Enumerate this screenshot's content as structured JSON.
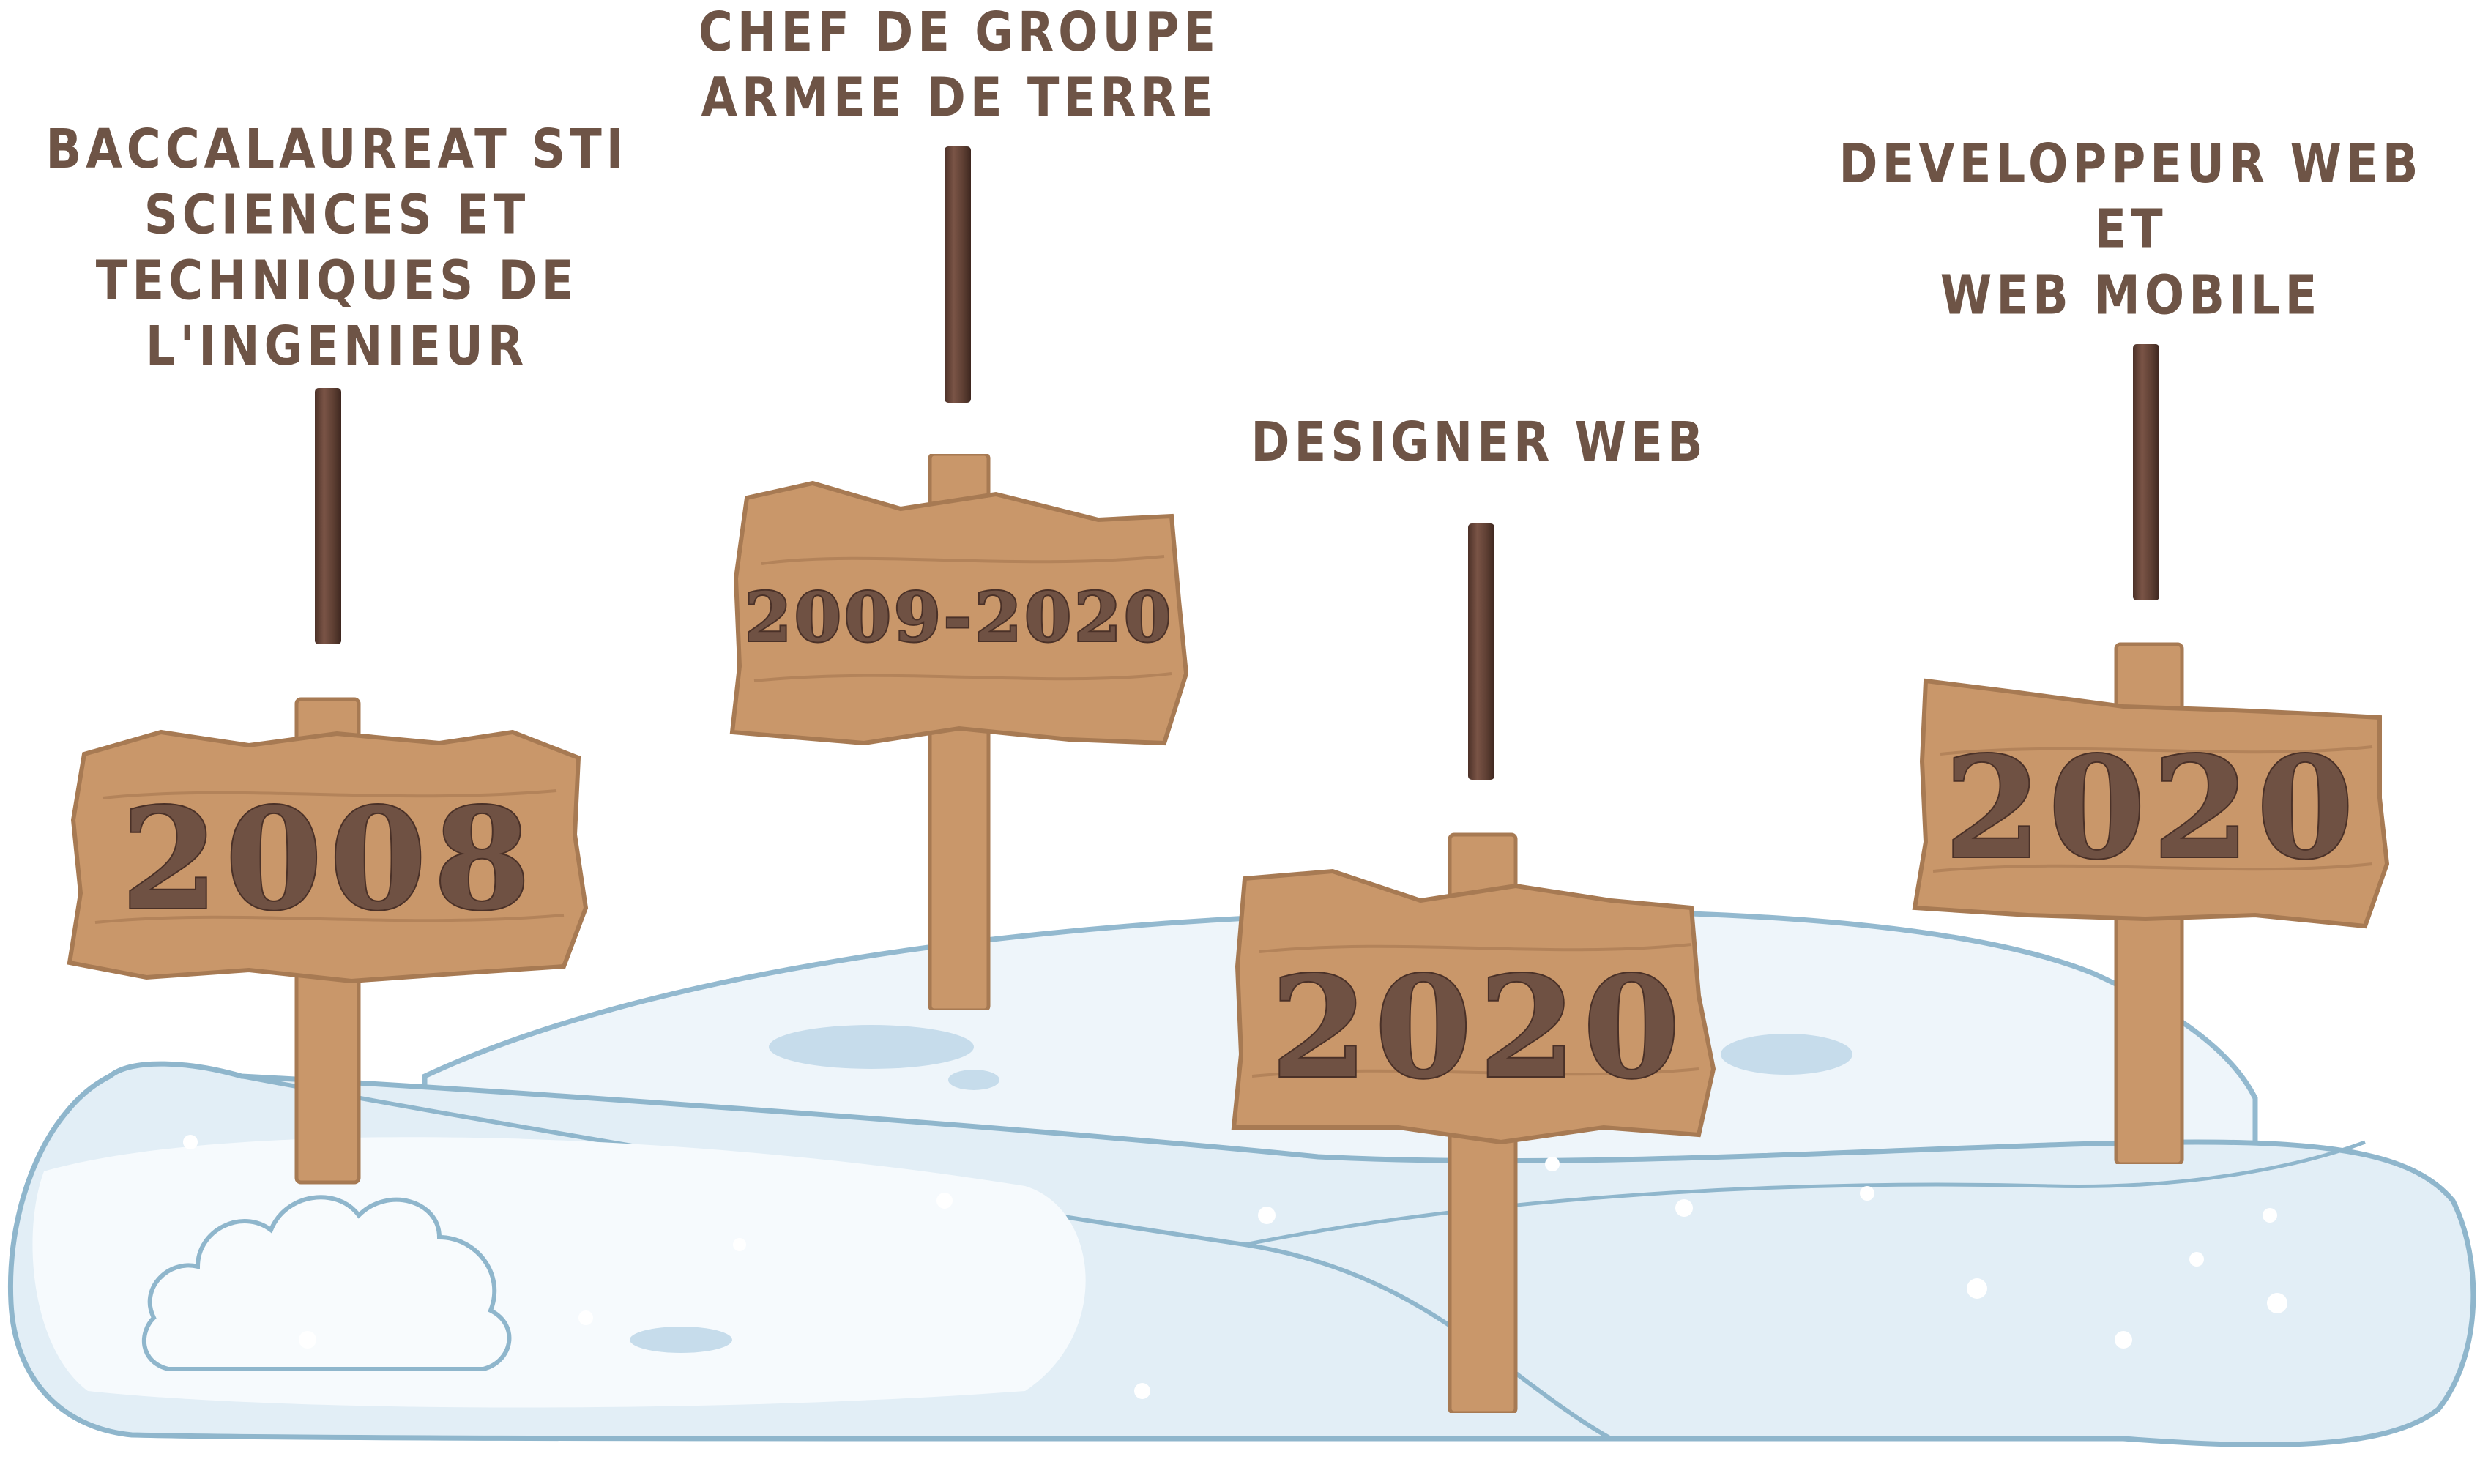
{
  "milestones": [
    {
      "year": "2008",
      "title_lines": [
        "BACCALAUREAT STI",
        "SCIENCES ET",
        "TECHNIQUES DE",
        "L'INGENIEUR"
      ]
    },
    {
      "year": "2009-2020",
      "title_lines": [
        "CHEF DE GROUPE",
        "ARMEE DE TERRE"
      ]
    },
    {
      "year": "2020",
      "title_lines": [
        "DESIGNER WEB"
      ]
    },
    {
      "year": "2020",
      "title_lines": [
        "DEVELOPPEUR WEB",
        "ET",
        "WEB MOBILE"
      ]
    }
  ],
  "colors": {
    "text": "#6e5446",
    "wood": "#c9976a",
    "wood_dark": "#a77a53",
    "snow": "#e4eff6",
    "snow_outline": "#8fb6cc"
  }
}
